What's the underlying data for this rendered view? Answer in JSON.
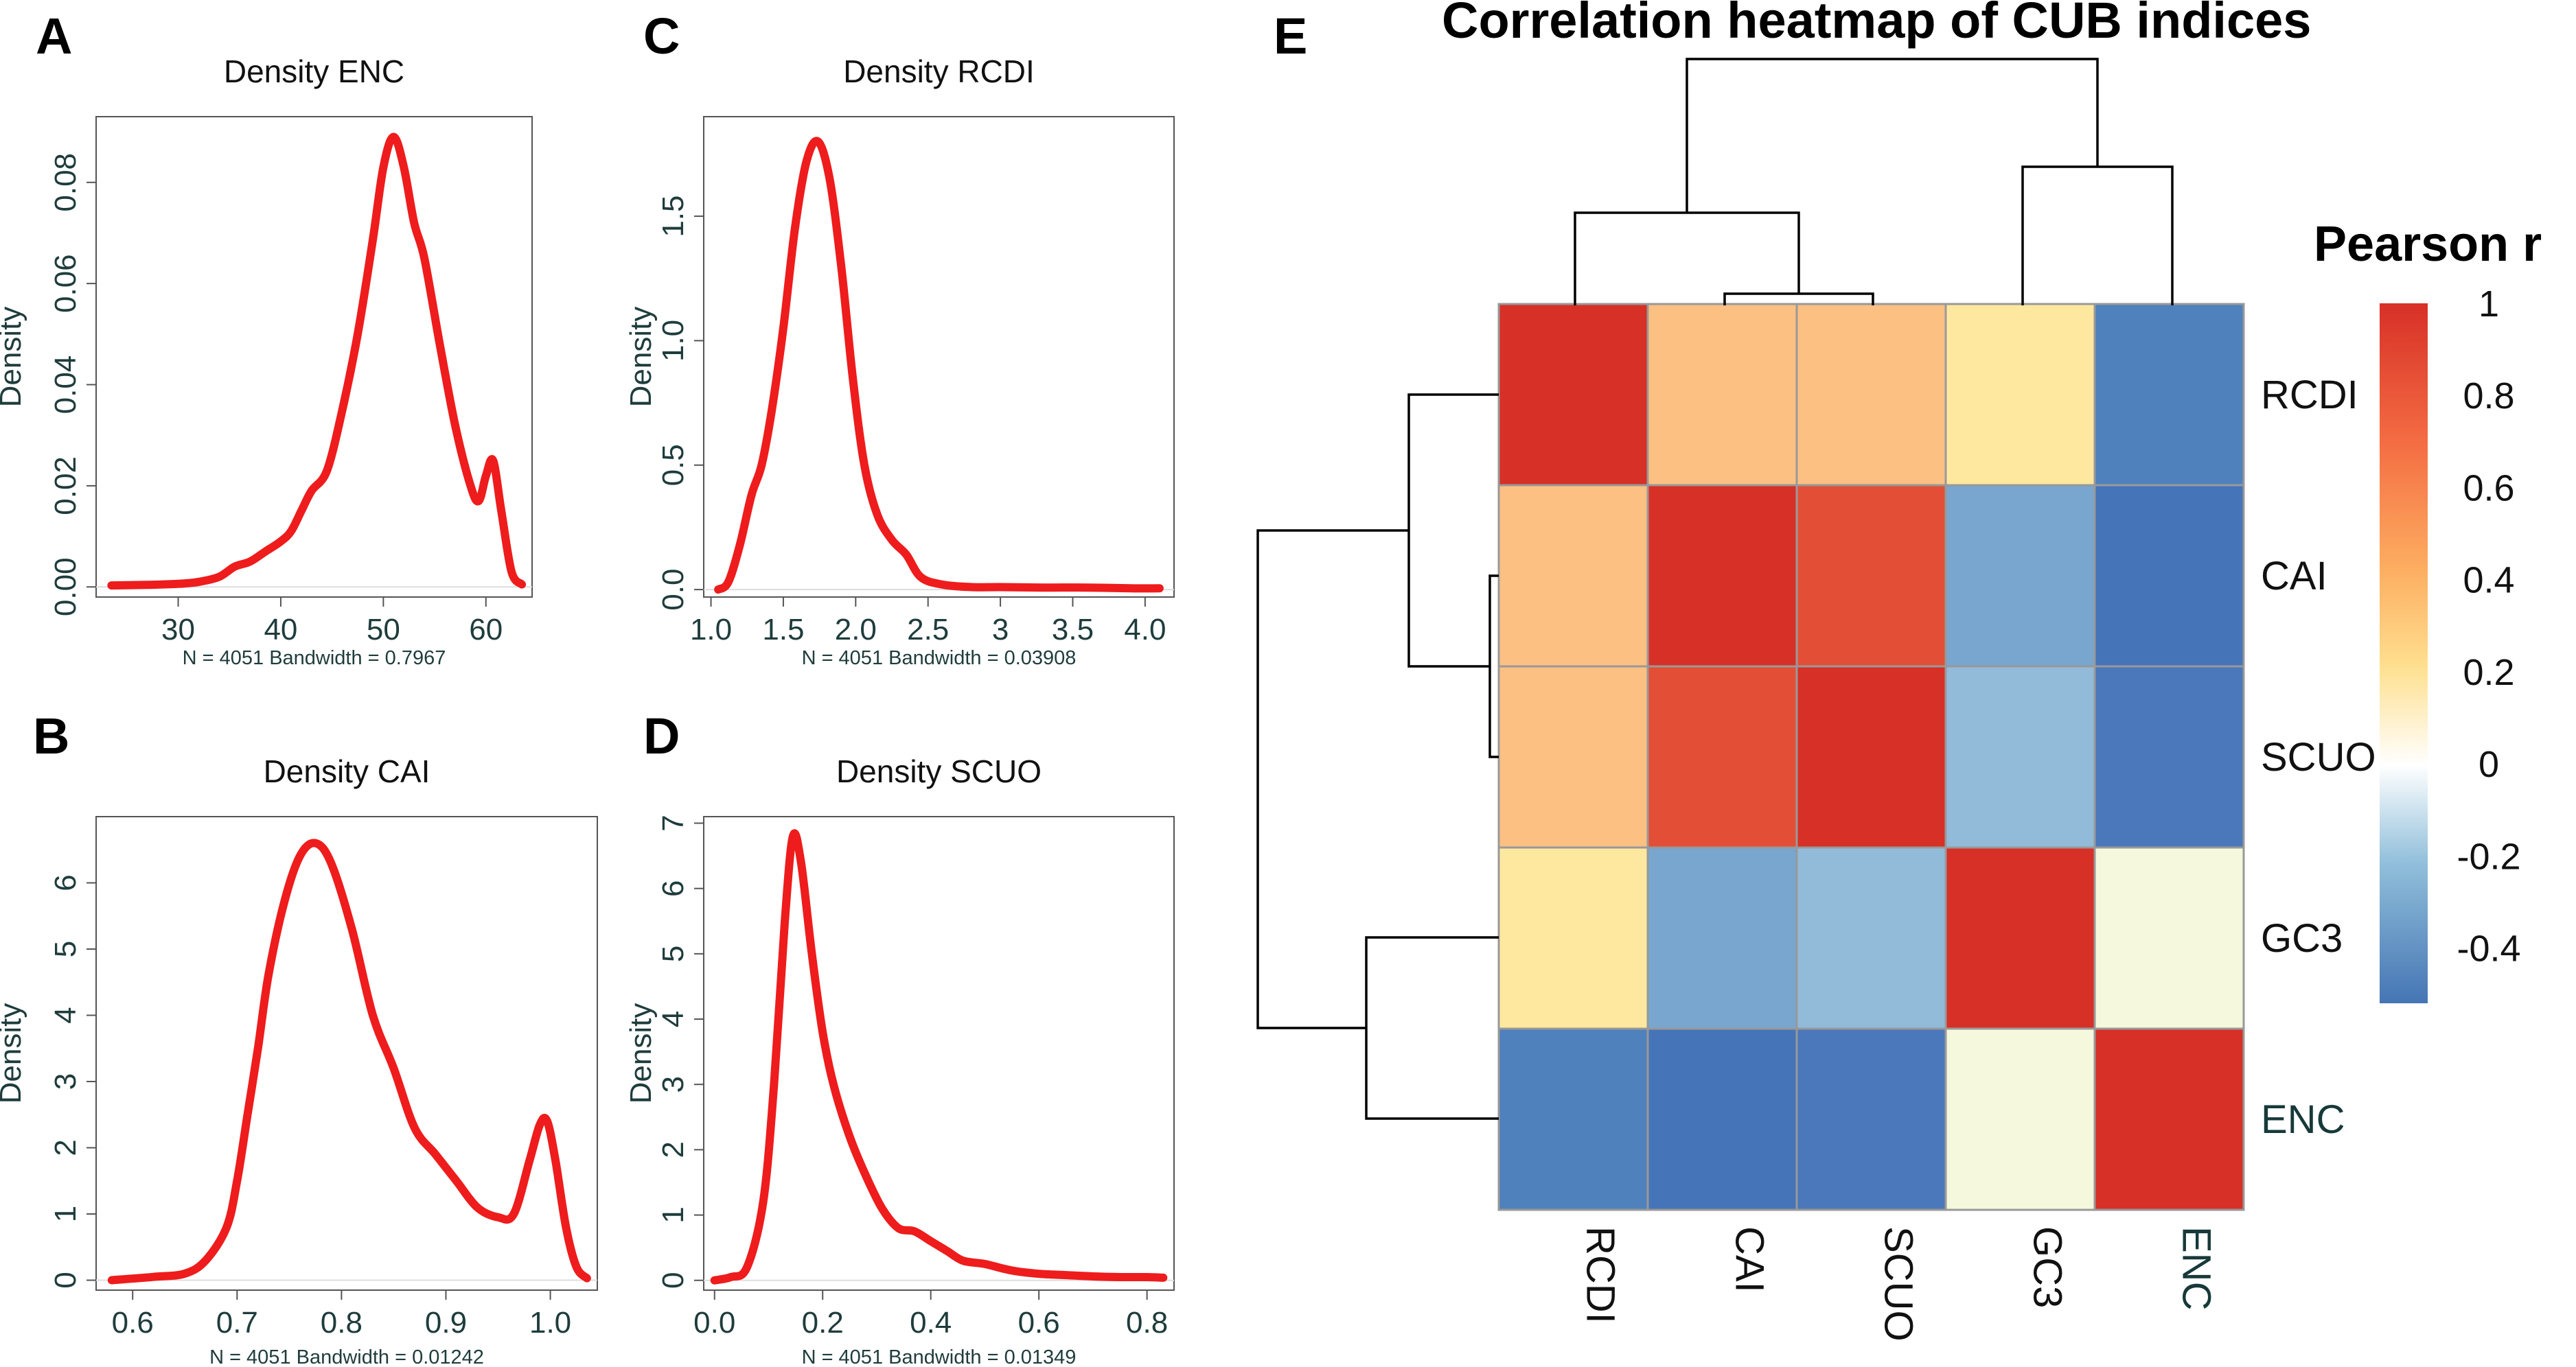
{
  "chart_data": [
    {
      "panel": "A",
      "type": "line",
      "title": "Density ENC",
      "xlabel": "N = 4051 Bandwidth = 0.7967",
      "ylabel": "Density",
      "xlim": [
        22,
        64.5
      ],
      "ylim": [
        -0.002,
        0.093
      ],
      "xticks": [
        30,
        40,
        50,
        60
      ],
      "yticks": [
        0.0,
        0.02,
        0.04,
        0.06,
        0.08
      ],
      "ytick_labels": [
        "0.00",
        "0.02",
        "0.04",
        "0.06",
        "0.08"
      ],
      "xtick_labels": [
        "30",
        "40",
        "50",
        "60"
      ],
      "x": [
        23.5,
        27,
        30,
        32,
        34,
        35.5,
        37,
        38.5,
        40,
        41,
        42,
        43,
        44.5,
        46,
        47.5,
        49,
        50,
        51,
        52,
        53,
        54,
        55.5,
        57,
        58.5,
        59.3,
        60,
        60.7,
        61.5,
        62.5,
        63.5
      ],
      "y": [
        0.0003,
        0.0004,
        0.0006,
        0.001,
        0.002,
        0.004,
        0.005,
        0.007,
        0.009,
        0.011,
        0.015,
        0.019,
        0.023,
        0.035,
        0.05,
        0.069,
        0.083,
        0.089,
        0.083,
        0.072,
        0.065,
        0.048,
        0.032,
        0.02,
        0.017,
        0.022,
        0.025,
        0.015,
        0.003,
        0.0005
      ]
    },
    {
      "panel": "C",
      "type": "line",
      "title": "Density RCDI",
      "xlabel": "N = 4051 Bandwidth = 0.03908",
      "ylabel": "Density",
      "xlim": [
        0.95,
        4.2
      ],
      "ylim": [
        -0.03,
        1.9
      ],
      "xticks": [
        1.0,
        1.5,
        2.0,
        2.5,
        3.0,
        3.5,
        4.0
      ],
      "yticks": [
        0.0,
        0.5,
        1.0,
        1.5
      ],
      "ytick_labels": [
        "0.0",
        "0.5",
        "1.0",
        "1.5"
      ],
      "xtick_labels": [
        "1.0",
        "1.5",
        "2.0",
        "2.5",
        "3",
        "3.5",
        "4.0"
      ],
      "x": [
        1.05,
        1.12,
        1.2,
        1.28,
        1.35,
        1.42,
        1.5,
        1.58,
        1.66,
        1.74,
        1.82,
        1.9,
        1.98,
        2.06,
        2.15,
        2.25,
        2.35,
        2.45,
        2.6,
        2.8,
        3.0,
        3.3,
        3.6,
        3.9,
        4.1
      ],
      "y": [
        0.0,
        0.03,
        0.18,
        0.38,
        0.5,
        0.72,
        1.05,
        1.45,
        1.72,
        1.8,
        1.65,
        1.3,
        0.85,
        0.5,
        0.3,
        0.2,
        0.14,
        0.05,
        0.02,
        0.01,
        0.01,
        0.008,
        0.008,
        0.005,
        0.005
      ]
    },
    {
      "panel": "B",
      "type": "line",
      "title": "Density CAI",
      "xlabel": "N = 4051 Bandwidth = 0.01242",
      "ylabel": "Density",
      "xlim": [
        0.565,
        1.045
      ],
      "ylim": [
        -0.15,
        7.0
      ],
      "xticks": [
        0.6,
        0.7,
        0.8,
        0.9,
        1.0
      ],
      "yticks": [
        0,
        1,
        2,
        3,
        4,
        5,
        6
      ],
      "ytick_labels": [
        "0",
        "1",
        "2",
        "3",
        "4",
        "5",
        "6"
      ],
      "xtick_labels": [
        "0.6",
        "0.7",
        "0.8",
        "0.9",
        "1.0"
      ],
      "x": [
        0.58,
        0.62,
        0.65,
        0.67,
        0.69,
        0.7,
        0.71,
        0.72,
        0.73,
        0.745,
        0.76,
        0.775,
        0.79,
        0.81,
        0.83,
        0.85,
        0.87,
        0.89,
        0.91,
        0.93,
        0.95,
        0.965,
        0.98,
        0.99,
        0.997,
        1.005,
        1.015,
        1.025,
        1.035
      ],
      "y": [
        0.0,
        0.05,
        0.1,
        0.3,
        0.8,
        1.5,
        2.5,
        3.5,
        4.6,
        5.7,
        6.4,
        6.6,
        6.3,
        5.3,
        4.0,
        3.2,
        2.3,
        1.9,
        1.5,
        1.1,
        0.95,
        1.0,
        1.8,
        2.35,
        2.4,
        1.8,
        0.8,
        0.2,
        0.03
      ]
    },
    {
      "panel": "D",
      "type": "line",
      "title": "Density SCUO",
      "xlabel": "N = 4051 Bandwidth = 0.01349",
      "ylabel": "Density",
      "xlim": [
        -0.02,
        0.85
      ],
      "ylim": [
        -0.15,
        7.1
      ],
      "xticks": [
        0.0,
        0.2,
        0.4,
        0.6,
        0.8
      ],
      "yticks": [
        0,
        1,
        2,
        3,
        4,
        5,
        6,
        7
      ],
      "ytick_labels": [
        "0",
        "1",
        "2",
        "3",
        "4",
        "5",
        "6",
        "7"
      ],
      "xtick_labels": [
        "0.0",
        "0.2",
        "0.4",
        "0.6",
        "0.8"
      ],
      "x": [
        0.0,
        0.03,
        0.06,
        0.09,
        0.11,
        0.13,
        0.145,
        0.16,
        0.18,
        0.2,
        0.22,
        0.25,
        0.28,
        0.31,
        0.34,
        0.37,
        0.4,
        0.43,
        0.46,
        0.5,
        0.55,
        0.6,
        0.65,
        0.7,
        0.75,
        0.8,
        0.83
      ],
      "y": [
        0.0,
        0.05,
        0.2,
        1.2,
        3.0,
        5.5,
        6.8,
        6.4,
        5.0,
        3.8,
        3.0,
        2.2,
        1.6,
        1.1,
        0.8,
        0.75,
        0.6,
        0.45,
        0.3,
        0.25,
        0.15,
        0.1,
        0.08,
        0.06,
        0.05,
        0.05,
        0.04
      ]
    },
    {
      "panel": "E",
      "type": "heatmap",
      "title": "Correlation heatmap of CUB indices",
      "rows": [
        "RCDI",
        "CAI",
        "SCUO",
        "GC3",
        "ENC"
      ],
      "cols": [
        "RCDI",
        "CAI",
        "SCUO",
        "GC3",
        "ENC"
      ],
      "colors": [
        [
          "#d73027",
          "#fcc083",
          "#fcc083",
          "#fee8a0",
          "#4f81bd"
        ],
        [
          "#fcc083",
          "#d73027",
          "#e34f36",
          "#78a6cf",
          "#4674b8"
        ],
        [
          "#fcc083",
          "#e34f36",
          "#d73027",
          "#92bbd9",
          "#4a78ba"
        ],
        [
          "#fee8a0",
          "#78a6cf",
          "#92bbd9",
          "#d73027",
          "#f5f8dc"
        ],
        [
          "#4f81bd",
          "#4674b8",
          "#4a78ba",
          "#f5f8dc",
          "#d73027"
        ]
      ],
      "legend": {
        "title": "Pearson r",
        "ticks": [
          "1",
          "0.8",
          "0.6",
          "0.4",
          "0.2",
          "0",
          "-0.2",
          "-0.4"
        ],
        "tick_values": [
          1,
          0.8,
          0.6,
          0.4,
          0.2,
          0,
          -0.2,
          -0.4
        ],
        "range": [
          -0.52,
          1.0
        ]
      }
    }
  ],
  "panel_labels": [
    "A",
    "B",
    "C",
    "D",
    "E"
  ]
}
